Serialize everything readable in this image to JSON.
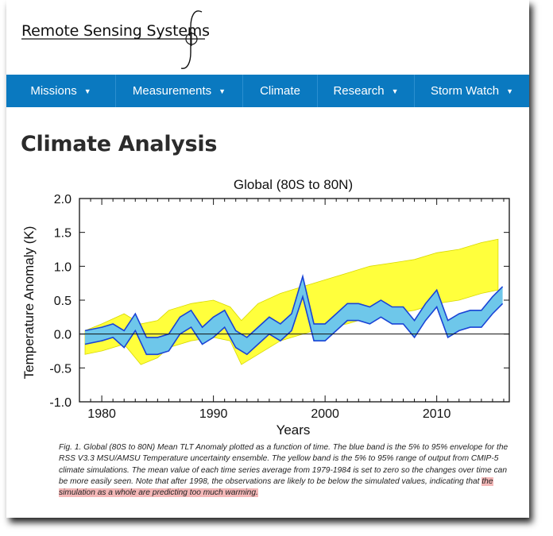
{
  "site": {
    "name": "Remote Sensing Systems"
  },
  "nav": [
    {
      "label": "Missions",
      "caret": "▼"
    },
    {
      "label": "Measurements",
      "caret": "▼"
    },
    {
      "label": "Climate",
      "caret": ""
    },
    {
      "label": "Research",
      "caret": "▼"
    },
    {
      "label": "Storm Watch",
      "caret": "▼"
    }
  ],
  "page": {
    "title": "Climate Analysis"
  },
  "colors": {
    "nav_bg": "#0a79c0",
    "model_band": "#ffff3c",
    "obs_band": "#6ec7ea",
    "obs_line": "#1a44d6",
    "highlight": "#f4b8b8"
  },
  "chart_data": {
    "type": "area",
    "title": "Global (80S to 80N)",
    "xlabel": "Years",
    "ylabel": "Temperature Anomaly (K)",
    "xlim": [
      1978,
      2016.5
    ],
    "ylim": [
      -1.0,
      2.0
    ],
    "xticks": [
      1980,
      1990,
      2000,
      2010
    ],
    "yticks": [
      "-1.0",
      "-0.5",
      "0.0",
      "0.5",
      "1.0",
      "1.5",
      "2.0"
    ],
    "series": [
      {
        "name": "CMIP-5 simulations 5%-95% range",
        "x": [
          1978.5,
          1980,
          1982,
          1983.5,
          1985,
          1986,
          1988,
          1990,
          1991.5,
          1992.5,
          1994,
          1996,
          1998,
          2000,
          2002,
          2004,
          2006,
          2008,
          2010,
          2012,
          2014,
          2015.5
        ],
        "upper": [
          0.05,
          0.15,
          0.3,
          0.15,
          0.2,
          0.35,
          0.45,
          0.5,
          0.4,
          0.2,
          0.45,
          0.6,
          0.7,
          0.8,
          0.9,
          1.0,
          1.05,
          1.1,
          1.2,
          1.25,
          1.35,
          1.4
        ],
        "lower": [
          -0.3,
          -0.25,
          -0.15,
          -0.45,
          -0.35,
          -0.2,
          -0.1,
          -0.05,
          -0.1,
          -0.45,
          -0.3,
          -0.1,
          0.0,
          0.1,
          0.15,
          0.25,
          0.3,
          0.35,
          0.45,
          0.5,
          0.6,
          0.65
        ]
      },
      {
        "name": "RSS V3.3 MSU/AMSU 5%-95% uncertainty ensemble",
        "x": [
          1978.5,
          1980,
          1981,
          1982,
          1983,
          1984,
          1985,
          1986,
          1987,
          1988,
          1989,
          1990,
          1991,
          1992,
          1993,
          1994,
          1995,
          1996,
          1997,
          1998,
          1999,
          2000,
          2001,
          2002,
          2003,
          2004,
          2005,
          2006,
          2007,
          2008,
          2009,
          2010,
          2011,
          2012,
          2013,
          2014,
          2015,
          2015.9
        ],
        "upper": [
          0.05,
          0.1,
          0.15,
          0.05,
          0.3,
          -0.05,
          -0.05,
          0.0,
          0.25,
          0.35,
          0.1,
          0.25,
          0.35,
          0.05,
          -0.05,
          0.1,
          0.25,
          0.15,
          0.3,
          0.85,
          0.15,
          0.15,
          0.3,
          0.45,
          0.45,
          0.4,
          0.5,
          0.4,
          0.4,
          0.2,
          0.45,
          0.65,
          0.2,
          0.3,
          0.35,
          0.35,
          0.55,
          0.7
        ],
        "lower": [
          -0.15,
          -0.1,
          -0.05,
          -0.2,
          0.05,
          -0.3,
          -0.3,
          -0.25,
          0.0,
          0.1,
          -0.15,
          -0.05,
          0.1,
          -0.2,
          -0.3,
          -0.15,
          0.0,
          -0.1,
          0.05,
          0.55,
          -0.1,
          -0.1,
          0.05,
          0.2,
          0.2,
          0.15,
          0.25,
          0.15,
          0.15,
          -0.05,
          0.2,
          0.4,
          -0.05,
          0.05,
          0.1,
          0.1,
          0.3,
          0.45
        ]
      }
    ],
    "legend": "none"
  },
  "caption": {
    "text": "Fig. 1.  Global (80S to 80N) Mean TLT Anomaly plotted as a function of time.  The blue band is the 5% to 95% envelope for the RSS V3.3 MSU/AMSU Temperature uncertainty ensemble.  The yellow band is the 5% to 95% range of output from CMIP-5 climate simulations.  The mean value of each time series average from 1979-1984 is set to zero so the changes over time can be more easily seen.  Note that after 1998, the observations are likely to be below the simulated values, indicating that ",
    "highlighted": "the simulation as a whole are predicting too much warming."
  }
}
